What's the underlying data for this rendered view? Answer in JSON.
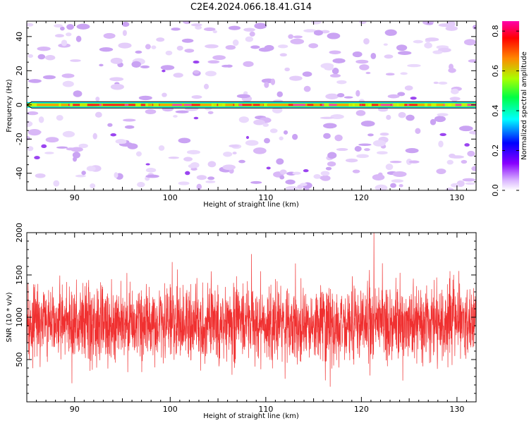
{
  "chart_data": [
    {
      "type": "heatmap",
      "title": "C2E4.2024.066.18.41.G14",
      "xlabel": "Height of straight line (km)",
      "ylabel": "Frequency (Hz)",
      "xlim": [
        85,
        132
      ],
      "ylim": [
        -50,
        49
      ],
      "x_ticks": [
        90,
        100,
        110,
        120,
        130
      ],
      "y_ticks": [
        -40,
        -20,
        0,
        20,
        40
      ],
      "colorbar": {
        "label": "Normalized spectral amplitude",
        "range": [
          0.0,
          0.85
        ],
        "ticks": [
          "0.0",
          "0.2",
          "0.4",
          "0.6",
          "0.8"
        ],
        "colormap": [
          "#ffffff",
          "#d9b3ff",
          "#8800ff",
          "#0000ff",
          "#00ffff",
          "#00ff44",
          "#aaff00",
          "#ff8800",
          "#ff0000",
          "#ff00aa"
        ]
      },
      "main_band": {
        "frequency_hz": 0,
        "amplitude": 0.75
      }
    },
    {
      "type": "line",
      "xlabel": "Height of straight line (km)",
      "ylabel": "SNR (10 * v/v)",
      "xlim": [
        85,
        132
      ],
      "ylim": [
        0,
        2000
      ],
      "x_ticks": [
        90,
        100,
        110,
        120,
        130
      ],
      "y_ticks": [
        500,
        1000,
        1500,
        2000
      ],
      "series": [
        {
          "name": "SNR",
          "color": "#f03030",
          "mean": 930,
          "min": 100,
          "max": 2000
        }
      ]
    }
  ]
}
